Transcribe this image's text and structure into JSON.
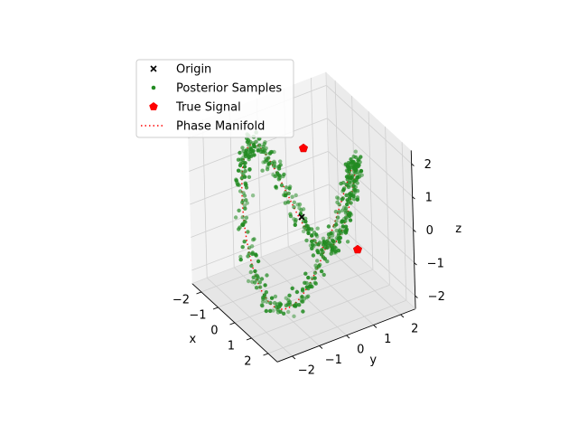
{
  "chart_data": {
    "type": "scatter",
    "projection": "3d",
    "title": "",
    "xlabel": "x",
    "ylabel": "y",
    "zlabel": "z",
    "xlim": [
      -2.5,
      2.5
    ],
    "ylim": [
      -2.5,
      2.5
    ],
    "zlim": [
      -2.4,
      2.4
    ],
    "xticks": [
      "−2",
      "−1",
      "0",
      "1",
      "2"
    ],
    "yticks": [
      "−2",
      "−1",
      "0",
      "1",
      "2"
    ],
    "zticks": [
      "−2",
      "−1",
      "0",
      "1",
      "2"
    ],
    "grid": true,
    "legend_position": "upper-left",
    "legend": [
      {
        "label": "Origin",
        "marker": "x",
        "color": "#000000"
      },
      {
        "label": "Posterior Samples",
        "marker": "dot",
        "color": "#228b22"
      },
      {
        "label": "True Signal",
        "marker": "pentagon",
        "color": "#ff0000"
      },
      {
        "label": "Phase Manifold",
        "marker": "dotted-line",
        "color": "#ff0000"
      }
    ],
    "series": [
      {
        "name": "Origin",
        "points": [
          [
            0,
            0,
            0
          ]
        ]
      },
      {
        "name": "Phase Manifold",
        "curve": "x = cos(t) + 2·cos(2t)/… (trefoil-like closed loop)",
        "radius": 2.0
      },
      {
        "name": "True Signal",
        "points": [
          [
            1.15,
            1.37,
            -0.9
          ],
          [
            -1.15,
            -1.37,
            0.9
          ]
        ]
      },
      {
        "name": "Posterior Samples",
        "count": 520,
        "spread": 0.12
      }
    ]
  }
}
